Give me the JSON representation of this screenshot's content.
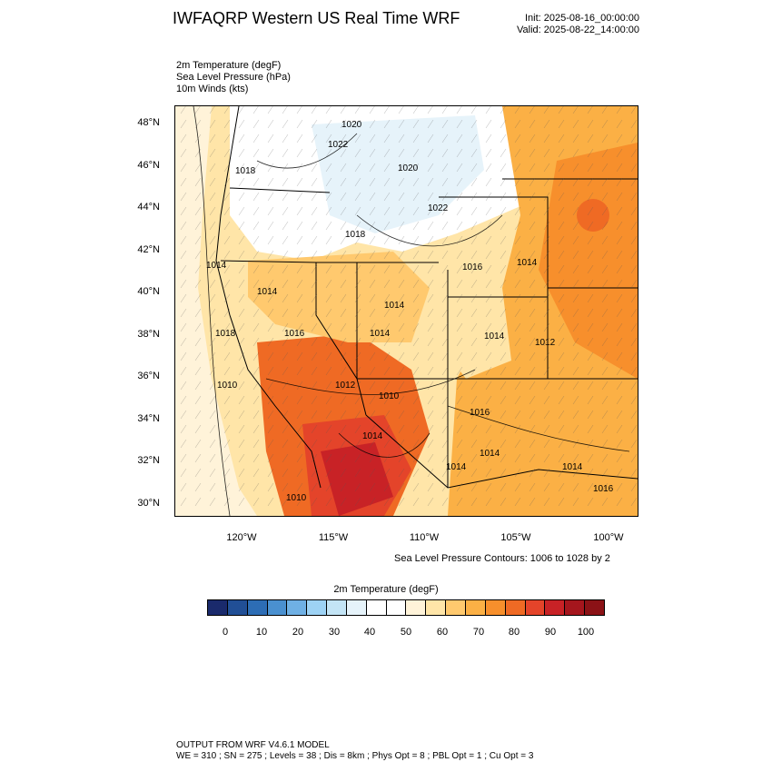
{
  "header": {
    "title": "IWFAQRP Western US Real Time WRF",
    "init": "Init: 2025-08-16_00:00:00",
    "valid": "Valid: 2025-08-22_14:00:00"
  },
  "fields": {
    "line1": "2m Temperature   (degF)",
    "line2": "Sea Level Pressure   (hPa)",
    "line3": "10m Winds   (kts)"
  },
  "axes": {
    "lat_labels": [
      "48°N",
      "46°N",
      "44°N",
      "42°N",
      "40°N",
      "38°N",
      "36°N",
      "34°N",
      "32°N",
      "30°N"
    ],
    "lon_labels": [
      "120°W",
      "115°W",
      "110°W",
      "105°W",
      "100°W"
    ]
  },
  "map": {
    "isobar_labels": [
      "1020",
      "1022",
      "1018",
      "1020",
      "1022",
      "1018",
      "1014",
      "1016",
      "1014",
      "1014",
      "1016",
      "1018",
      "1014",
      "1014",
      "1012",
      "1010",
      "1012",
      "1010",
      "1016",
      "1014",
      "1014",
      "1014",
      "1014",
      "1016",
      "1010",
      "1014"
    ]
  },
  "slp_note": "Sea Level Pressure Contours: 1006 to 1028 by 2",
  "colorbar": {
    "title": "2m Temperature  (degF)",
    "labels": [
      "0",
      "10",
      "20",
      "30",
      "40",
      "50",
      "60",
      "70",
      "80",
      "90",
      "100"
    ],
    "colors": [
      "#1a2a6c",
      "#214f96",
      "#2d6db5",
      "#4a90d0",
      "#6fb0e4",
      "#9dd2f4",
      "#c3e4f5",
      "#e6f3fa",
      "#ffffff",
      "#ffffff",
      "#fff3d9",
      "#ffe5a8",
      "#ffc96e",
      "#fbb045",
      "#f78f2c",
      "#ef6a24",
      "#e4442a",
      "#c82226",
      "#a5161d",
      "#8b1216"
    ]
  },
  "footer": {
    "line1": "OUTPUT FROM WRF V4.6.1 MODEL",
    "line2": "WE = 310 ; SN = 275 ; Levels = 38 ; Dis = 8km ; Phys Opt = 8 ; PBL Opt = 1 ; Cu Opt = 3"
  }
}
